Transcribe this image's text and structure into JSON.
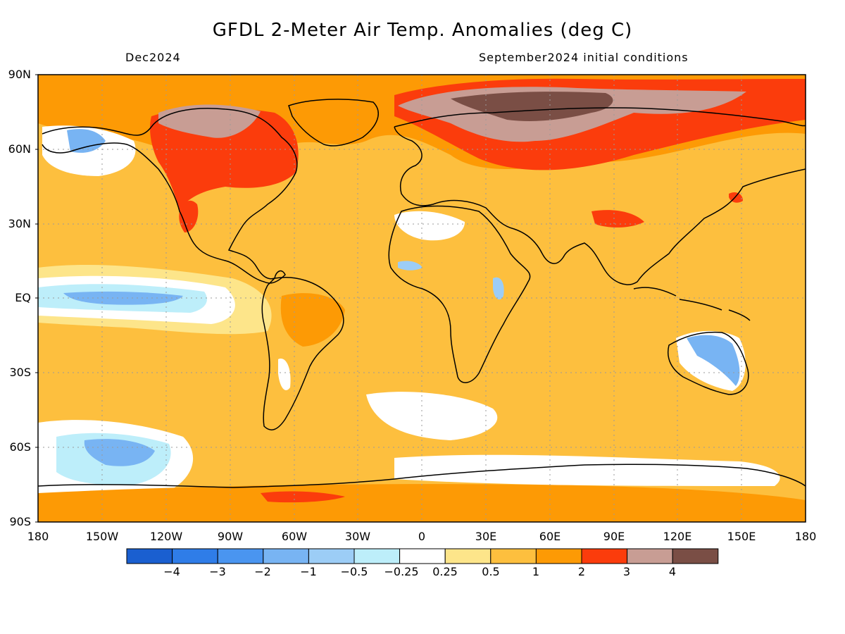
{
  "title": "GFDL 2-Meter Air Temp. Anomalies (deg C)",
  "subtitle_left": "Dec2024",
  "subtitle_right": "September2024 initial conditions",
  "lat_ticks": [
    "90N",
    "60N",
    "30N",
    "EQ",
    "30S",
    "60S",
    "90S"
  ],
  "lon_ticks": [
    "180",
    "150W",
    "120W",
    "90W",
    "60W",
    "30W",
    "0",
    "30E",
    "60E",
    "90E",
    "120E",
    "150E",
    "180"
  ],
  "colorbar": {
    "labels": [
      "−4",
      "−3",
      "−2",
      "−1",
      "−0.5",
      "−0.25",
      "0.25",
      "0.5",
      "1",
      "2",
      "3",
      "4"
    ],
    "colors": [
      "#1a5fd0",
      "#2f7de8",
      "#4a95f0",
      "#78b4f3",
      "#9ccdf6",
      "#bdeefa",
      "#ffffff",
      "#fde58a",
      "#fdbf3e",
      "#fd9a05",
      "#fb3c0c",
      "#c89d94",
      "#7a4e45"
    ]
  },
  "map": {
    "ocean_color": "#fdbf3e",
    "coast_color": "#000000",
    "grid_color": "#9a9a9a"
  }
}
